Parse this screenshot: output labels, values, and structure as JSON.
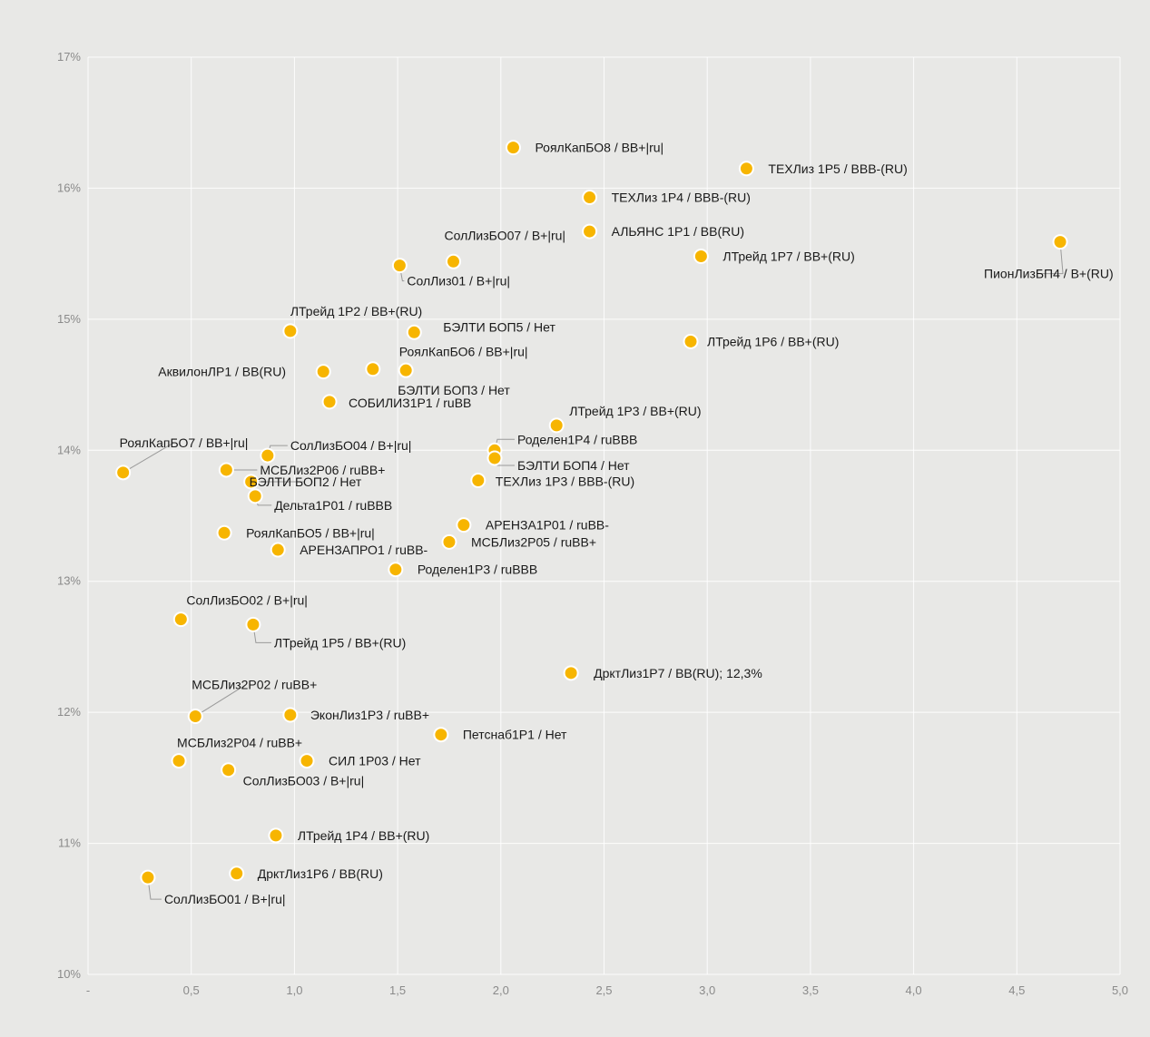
{
  "chart_data": {
    "type": "scatter",
    "title": "",
    "xlabel": "",
    "ylabel": "",
    "xlim": [
      0,
      5
    ],
    "ylim": [
      10,
      17
    ],
    "grid": true,
    "x_tick_labels": [
      "-",
      "0,5",
      "1,0",
      "1,5",
      "2,0",
      "2,5",
      "3,0",
      "3,5",
      "4,0",
      "4,5",
      "5,0"
    ],
    "y_tick_labels": [
      "10%",
      "11%",
      "12%",
      "13%",
      "14%",
      "15%",
      "16%",
      "17%"
    ],
    "colors": {
      "point": "#f7b500",
      "background": "#e8e8e6",
      "grid": "#ffffff"
    },
    "points": [
      {
        "label": "РоялКапБО8 / BB+|ru|",
        "x": 2.06,
        "y": 16.31
      },
      {
        "label": "ТЕХЛиз 1Р5 / BBB-(RU)",
        "x": 3.19,
        "y": 16.15
      },
      {
        "label": "ТЕХЛиз 1Р4 / BBB-(RU)",
        "x": 2.43,
        "y": 15.93
      },
      {
        "label": "АЛЬЯНС 1Р1 / BB(RU)",
        "x": 2.43,
        "y": 15.67
      },
      {
        "label": "СолЛизБО07 / B+|ru|",
        "x": 1.77,
        "y": 15.44
      },
      {
        "label": "ЛТрейд 1Р7 / BB+(RU)",
        "x": 2.97,
        "y": 15.48
      },
      {
        "label": "ПионЛизБП4 / B+(RU)",
        "x": 4.71,
        "y": 15.59
      },
      {
        "label": "СолЛиз01 / B+|ru|",
        "x": 1.51,
        "y": 15.41
      },
      {
        "label": "ЛТрейд 1Р2 / BB+(RU)",
        "x": 0.98,
        "y": 14.91
      },
      {
        "label": "БЭЛТИ БОП5 / Нет",
        "x": 1.58,
        "y": 14.9
      },
      {
        "label": "ЛТрейд 1Р6 / BB+(RU)",
        "x": 2.92,
        "y": 14.83
      },
      {
        "label": "РоялКапБО6 / BB+|ru|",
        "x": 1.38,
        "y": 14.62
      },
      {
        "label": "АквилонЛР1 / BB(RU)",
        "x": 1.14,
        "y": 14.6
      },
      {
        "label": "БЭЛТИ БОП3 / Нет",
        "x": 1.54,
        "y": 14.61
      },
      {
        "label": "СОБИЛИЗ1Р1 / ruBB",
        "x": 1.17,
        "y": 14.37
      },
      {
        "label": "ЛТрейд 1Р3 / BB+(RU)",
        "x": 2.27,
        "y": 14.19
      },
      {
        "label": "Роделен1Р4 / ruBBB",
        "x": 1.97,
        "y": 14.0
      },
      {
        "label": "БЭЛТИ БОП4 / Нет",
        "x": 1.97,
        "y": 13.94
      },
      {
        "label": "СолЛизБО04 / B+|ru|",
        "x": 0.87,
        "y": 13.96
      },
      {
        "label": "РоялКапБО7 / BB+|ru|",
        "x": 0.17,
        "y": 13.83
      },
      {
        "label": "МСБЛиз2Р06 / ruBB+",
        "x": 0.67,
        "y": 13.85
      },
      {
        "label": "БЭЛТИ БОП2 / Нет",
        "x": 0.79,
        "y": 13.76
      },
      {
        "label": "ТЕХЛиз 1Р3 / BBB-(RU)",
        "x": 1.89,
        "y": 13.77
      },
      {
        "label": "Дельта1Р01 / ruBBB",
        "x": 0.81,
        "y": 13.65
      },
      {
        "label": "АРЕНЗА1Р01 / ruBB-",
        "x": 1.82,
        "y": 13.43
      },
      {
        "label": "РоялКапБО5 / BB+|ru|",
        "x": 0.66,
        "y": 13.37
      },
      {
        "label": "МСБЛиз2Р05 / ruBB+",
        "x": 1.75,
        "y": 13.3
      },
      {
        "label": "АРЕНЗАПРО1 / ruBB-",
        "x": 0.92,
        "y": 13.24
      },
      {
        "label": "Роделен1Р3 / ruBBB",
        "x": 1.49,
        "y": 13.09
      },
      {
        "label": "СолЛизБО02 / B+|ru|",
        "x": 0.45,
        "y": 12.71
      },
      {
        "label": "ЛТрейд 1Р5 / BB+(RU)",
        "x": 0.8,
        "y": 12.67
      },
      {
        "label": "ДрктЛиз1Р7 / BB(RU); 12,3%",
        "x": 2.34,
        "y": 12.3
      },
      {
        "label": "МСБЛиз2Р02 / ruBB+",
        "x": 0.52,
        "y": 11.97
      },
      {
        "label": "ЭконЛиз1Р3 / ruBB+",
        "x": 0.98,
        "y": 11.98
      },
      {
        "label": "Петснаб1Р1 / Нет",
        "x": 1.71,
        "y": 11.83
      },
      {
        "label": "МСБЛиз2Р04 / ruBB+",
        "x": 0.44,
        "y": 11.63
      },
      {
        "label": "СИЛ 1Р03 / Нет",
        "x": 1.06,
        "y": 11.63
      },
      {
        "label": "СолЛизБО03 / B+|ru|",
        "x": 0.68,
        "y": 11.56
      },
      {
        "label": "ЛТрейд 1Р4 / BB+(RU)",
        "x": 0.91,
        "y": 11.06
      },
      {
        "label": "ДрктЛиз1Р6 / BB(RU)",
        "x": 0.72,
        "y": 10.77
      },
      {
        "label": "СолЛизБО01 / B+|ru|",
        "x": 0.29,
        "y": 10.74
      }
    ]
  }
}
